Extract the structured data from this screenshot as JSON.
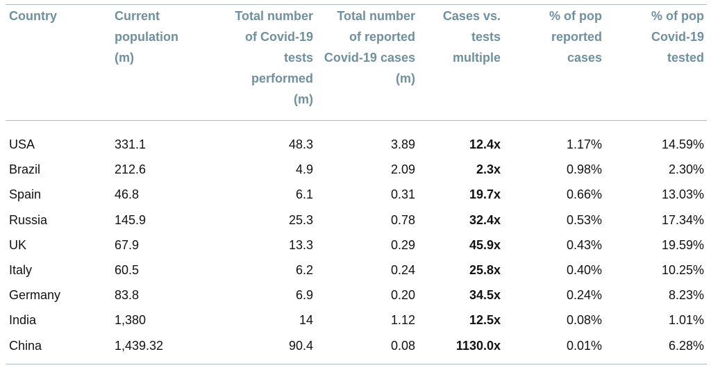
{
  "table": {
    "header": [
      [
        "Country"
      ],
      [
        "Current",
        "population",
        "(m)"
      ],
      [
        "Total number",
        "of Covid-19",
        "tests",
        "performed",
        "(m)"
      ],
      [
        "Total number",
        "of reported",
        "Covid-19 cases",
        "(m)"
      ],
      [
        "Cases vs.",
        "tests",
        "multiple"
      ],
      [
        "% of pop",
        "reported",
        "cases"
      ],
      [
        "% of pop",
        "Covid-19",
        "tested"
      ]
    ],
    "rows": [
      [
        "USA",
        "331.1",
        "48.3",
        "3.89",
        "12.4x",
        "1.17%",
        "14.59%"
      ],
      [
        "Brazil",
        "212.6",
        "4.9",
        "2.09",
        "2.3x",
        "0.98%",
        "2.30%"
      ],
      [
        "Spain",
        "46.8",
        "6.1",
        "0.31",
        "19.7x",
        "0.66%",
        "13.03%"
      ],
      [
        "Russia",
        "145.9",
        "25.3",
        "0.78",
        "32.4x",
        "0.53%",
        "17.34%"
      ],
      [
        "UK",
        "67.9",
        "13.3",
        "0.29",
        "45.9x",
        "0.43%",
        "19.59%"
      ],
      [
        "Italy",
        "60.5",
        "6.2",
        "0.24",
        "25.8x",
        "0.40%",
        "10.25%"
      ],
      [
        "Germany",
        "83.8",
        "6.9",
        "0.20",
        "34.5x",
        "0.24%",
        "8.23%"
      ],
      [
        "India",
        "1,380",
        "14",
        "1.12",
        "12.5x",
        "0.08%",
        "1.01%"
      ],
      [
        "China",
        "1,439.32",
        "90.4",
        "0.08",
        "1130.0x",
        "0.01%",
        "6.28%"
      ]
    ]
  }
}
